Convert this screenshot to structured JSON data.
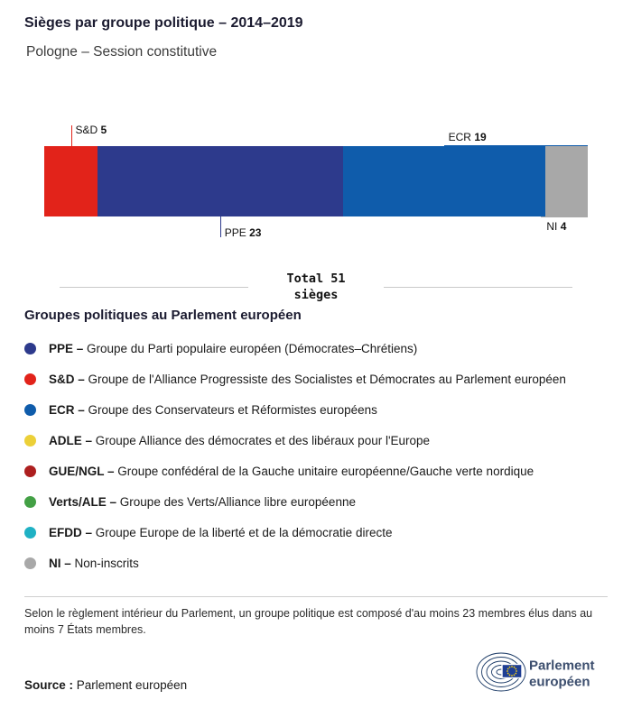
{
  "chart_data": {
    "type": "bar",
    "stacked": true,
    "orientation": "horizontal",
    "title": "Sièges par groupe politique – 2014–2019",
    "subtitle": "Pologne – Session constitutive",
    "total_seats": 51,
    "total_label": {
      "line1": "Total 51",
      "line2": "sièges"
    },
    "segments": [
      {
        "name": "S&D",
        "value": 5,
        "color": "#e2231a",
        "label": {
          "side": "top",
          "style": "tick"
        }
      },
      {
        "name": "PPE",
        "value": 23,
        "color": "#2d3a8c",
        "label": {
          "side": "bottom",
          "style": "tick"
        }
      },
      {
        "name": "ECR",
        "value": 19,
        "color": "#0f5cab",
        "label": {
          "side": "top",
          "style": "edge"
        }
      },
      {
        "name": "NI",
        "value": 4,
        "color": "#a8a8a8",
        "label": {
          "side": "bottom",
          "style": "edge"
        }
      }
    ]
  },
  "legend": {
    "heading": "Groupes politiques au Parlement européen",
    "separator": "–",
    "items": [
      {
        "abbr": "PPE",
        "name": "Groupe du Parti populaire européen (Démocrates–Chrétiens)",
        "color": "#2d3a8c"
      },
      {
        "abbr": "S&D",
        "name": "Groupe de l'Alliance Progressiste des Socialistes et Démocrates au Parlement européen",
        "color": "#e2231a"
      },
      {
        "abbr": "ECR",
        "name": "Groupe des Conservateurs et Réformistes européens",
        "color": "#0f5cab"
      },
      {
        "abbr": "ADLE",
        "name": "Groupe Alliance des démocrates et des libéraux pour l'Europe",
        "color": "#ecd038"
      },
      {
        "abbr": "GUE/NGL",
        "name": "Groupe confédéral de la Gauche unitaire européenne/Gauche verte nordique",
        "color": "#ad1f1f"
      },
      {
        "abbr": "Verts/ALE",
        "name": "Groupe des Verts/Alliance libre européenne",
        "color": "#43a045"
      },
      {
        "abbr": "EFDD",
        "name": "Groupe Europe de la liberté et de la démocratie directe",
        "color": "#1fb1c4"
      },
      {
        "abbr": "NI",
        "name": "Non-inscrits",
        "color": "#a8a8a8"
      }
    ]
  },
  "footnote": "Selon le règlement intérieur du Parlement, un groupe politique est composé d'au moins 23 membres élus dans au moins 7 États membres.",
  "source": {
    "label": "Source :",
    "value": "Parlement européen"
  },
  "logo": {
    "line1": "Parlement",
    "line2": "européen",
    "mark_color": "#1b3a66",
    "flag_blue": "#1e3e93",
    "star_yellow": "#f7d117",
    "text_color": "#3c4e6e"
  }
}
